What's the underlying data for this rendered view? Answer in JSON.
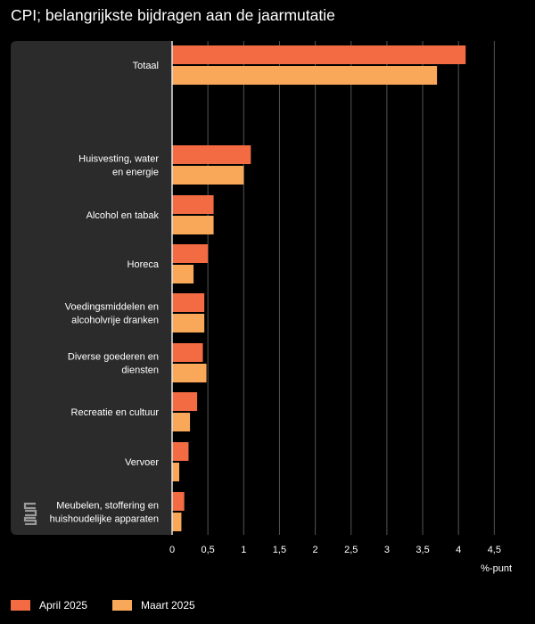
{
  "title": "CPI; belangrijkste bijdragen aan de jaarmutatie",
  "chart_data": {
    "type": "bar",
    "orientation": "horizontal",
    "title": "CPI; belangrijkste bijdragen aan de jaarmutatie",
    "xlabel": "%-punt",
    "xlim": [
      0,
      4.5
    ],
    "x_ticks": [
      "0",
      "0,5",
      "1",
      "1,5",
      "2",
      "2,5",
      "3",
      "3,5",
      "4",
      "4,5"
    ],
    "x_tick_values": [
      0,
      0.5,
      1,
      1.5,
      2,
      2.5,
      3,
      3.5,
      4,
      4.5
    ],
    "grid": true,
    "legend_position": "bottom-left",
    "categories": [
      "Totaal",
      "Huisvesting, water en energie",
      "Alcohol en tabak",
      "Horeca",
      "Voedingsmiddelen en alcoholvrije dranken",
      "Diverse goederen en diensten",
      "Recreatie en cultuur",
      "Vervoer",
      "Meubelen, stoffering en huishoudelijke apparaten"
    ],
    "category_lines": [
      [
        "Totaal"
      ],
      [
        "Huisvesting, water",
        "en energie"
      ],
      [
        "Alcohol en tabak"
      ],
      [
        "Horeca"
      ],
      [
        "Voedingsmiddelen en",
        "alcoholvrije dranken"
      ],
      [
        "Diverse goederen en",
        "diensten"
      ],
      [
        "Recreatie en cultuur"
      ],
      [
        "Vervoer"
      ],
      [
        "Meubelen, stoffering en",
        "huishoudelijke apparaten"
      ]
    ],
    "series": [
      {
        "name": "April 2025",
        "color": "#f26b43",
        "values": [
          4.1,
          1.1,
          0.58,
          0.5,
          0.45,
          0.43,
          0.35,
          0.23,
          0.17
        ]
      },
      {
        "name": "Maart 2025",
        "color": "#f9a85a",
        "values": [
          3.7,
          1.0,
          0.58,
          0.3,
          0.45,
          0.48,
          0.25,
          0.1,
          0.13
        ]
      }
    ]
  },
  "colors": {
    "background": "#000000",
    "panel": "#2b2b2b",
    "grid": "#555555"
  },
  "logo_icon": "cbs-logo-icon"
}
